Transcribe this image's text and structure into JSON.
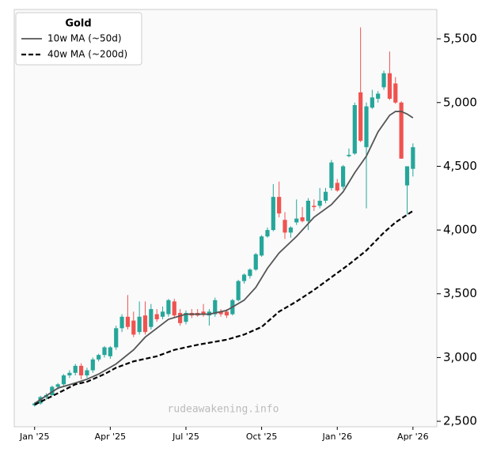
{
  "chart_data": {
    "type": "candlestick",
    "legend_title": "Gold",
    "legend_position": "upper left",
    "watermark": "rudeawakening.info",
    "up_color": "#26a69a",
    "down_color": "#ef5350",
    "x": [
      0,
      1,
      2,
      3,
      4,
      5,
      6,
      7,
      8,
      9,
      10,
      11,
      12,
      13,
      14,
      15,
      16,
      17,
      18,
      19,
      20,
      21,
      22,
      23,
      24,
      25,
      26,
      27,
      28,
      29,
      30,
      31,
      32,
      33,
      34,
      35,
      36,
      37,
      38,
      39,
      40,
      41,
      42,
      43,
      44,
      45,
      46,
      47,
      48,
      49,
      50,
      51,
      52,
      53,
      54,
      55,
      56,
      57,
      58,
      59,
      60,
      61,
      62,
      63,
      64,
      65
    ],
    "ohlc": [
      [
        2625,
        2650,
        2615,
        2640
      ],
      [
        2640,
        2700,
        2630,
        2690
      ],
      [
        2690,
        2720,
        2670,
        2705
      ],
      [
        2705,
        2780,
        2700,
        2770
      ],
      [
        2770,
        2800,
        2750,
        2790
      ],
      [
        2790,
        2870,
        2780,
        2860
      ],
      [
        2860,
        2900,
        2840,
        2880
      ],
      [
        2880,
        2950,
        2860,
        2935
      ],
      [
        2935,
        2955,
        2830,
        2860
      ],
      [
        2860,
        2920,
        2840,
        2900
      ],
      [
        2900,
        3000,
        2880,
        2985
      ],
      [
        2985,
        3030,
        2970,
        3020
      ],
      [
        3020,
        3090,
        3000,
        3080
      ],
      [
        3010,
        3090,
        2990,
        3080
      ],
      [
        3080,
        3250,
        3060,
        3230
      ],
      [
        3230,
        3340,
        3200,
        3320
      ],
      [
        3320,
        3490,
        3220,
        3240
      ],
      [
        3290,
        3360,
        3160,
        3180
      ],
      [
        3200,
        3440,
        3180,
        3320
      ],
      [
        3330,
        3440,
        3180,
        3200
      ],
      [
        3240,
        3420,
        3220,
        3380
      ],
      [
        3340,
        3380,
        3280,
        3300
      ],
      [
        3320,
        3400,
        3300,
        3360
      ],
      [
        3340,
        3460,
        3320,
        3450
      ],
      [
        3440,
        3460,
        3310,
        3330
      ],
      [
        3350,
        3380,
        3250,
        3270
      ],
      [
        3280,
        3370,
        3260,
        3350
      ],
      [
        3350,
        3380,
        3310,
        3330
      ],
      [
        3350,
        3380,
        3320,
        3330
      ],
      [
        3360,
        3420,
        3320,
        3340
      ],
      [
        3330,
        3380,
        3250,
        3360
      ],
      [
        3340,
        3470,
        3320,
        3450
      ],
      [
        3360,
        3380,
        3320,
        3340
      ],
      [
        3360,
        3380,
        3310,
        3330
      ],
      [
        3340,
        3460,
        3330,
        3450
      ],
      [
        3450,
        3610,
        3440,
        3600
      ],
      [
        3600,
        3660,
        3580,
        3650
      ],
      [
        3640,
        3700,
        3620,
        3690
      ],
      [
        3690,
        3820,
        3680,
        3810
      ],
      [
        3800,
        3960,
        3790,
        3950
      ],
      [
        3950,
        4020,
        3940,
        4000
      ],
      [
        4000,
        4360,
        3990,
        4260
      ],
      [
        4260,
        4380,
        4100,
        4130
      ],
      [
        4080,
        4140,
        3930,
        3980
      ],
      [
        3980,
        4030,
        3940,
        4020
      ],
      [
        4060,
        4240,
        4040,
        4090
      ],
      [
        4100,
        4180,
        4060,
        4070
      ],
      [
        4070,
        4250,
        4000,
        4230
      ],
      [
        4190,
        4240,
        4150,
        4180
      ],
      [
        4190,
        4330,
        4170,
        4230
      ],
      [
        4230,
        4330,
        4210,
        4300
      ],
      [
        4330,
        4550,
        4310,
        4530
      ],
      [
        4370,
        4400,
        4300,
        4310
      ],
      [
        4340,
        4510,
        4320,
        4500
      ],
      [
        4580,
        4640,
        4570,
        4590
      ],
      [
        4600,
        5000,
        4590,
        4980
      ],
      [
        5080,
        5590,
        4690,
        4700
      ],
      [
        4650,
        5000,
        4170,
        4970
      ],
      [
        4960,
        5100,
        4950,
        5040
      ],
      [
        5030,
        5090,
        5000,
        5070
      ],
      [
        5120,
        5250,
        5100,
        5230
      ],
      [
        5230,
        5400,
        5020,
        5030
      ],
      [
        5150,
        5200,
        4990,
        5000
      ],
      [
        5000,
        5010,
        4560,
        4560
      ],
      [
        4350,
        4500,
        4120,
        4500
      ],
      [
        4480,
        4680,
        4420,
        4650
      ]
    ],
    "series": [
      {
        "name": "10w MA (~50d)",
        "color": "#555555",
        "dash": false,
        "x": [
          0,
          4,
          7,
          9,
          11,
          14,
          17,
          19,
          21,
          23,
          26,
          30,
          33,
          36,
          38,
          40,
          42,
          45,
          48,
          51,
          53,
          55,
          57,
          59,
          61,
          62,
          63,
          64,
          65
        ],
        "values": [
          2640,
          2760,
          2800,
          2830,
          2870,
          2950,
          3060,
          3160,
          3230,
          3300,
          3340,
          3340,
          3370,
          3450,
          3550,
          3700,
          3820,
          3950,
          4100,
          4200,
          4300,
          4450,
          4580,
          4770,
          4900,
          4930,
          4930,
          4910,
          4880
        ]
      },
      {
        "name": "40w MA (~200d)",
        "color": "#000000",
        "dash": true,
        "x": [
          0,
          4,
          7,
          9,
          12,
          14,
          17,
          21,
          24,
          28,
          33,
          36,
          39,
          42,
          45,
          48,
          51,
          54,
          57,
          60,
          62,
          65
        ],
        "values": [
          2630,
          2720,
          2790,
          2810,
          2870,
          2920,
          2970,
          3010,
          3060,
          3100,
          3140,
          3180,
          3240,
          3360,
          3440,
          3530,
          3630,
          3730,
          3840,
          3980,
          4060,
          4150
        ]
      }
    ],
    "xlim": [
      -3.5,
      69.1
    ],
    "ylim": [
      2457,
      5730
    ],
    "xticks": [
      {
        "value": 0,
        "label": "Jan '25"
      },
      {
        "value": 13,
        "label": "Apr '25"
      },
      {
        "value": 26,
        "label": "Jul '25"
      },
      {
        "value": 39,
        "label": "Oct '25"
      },
      {
        "value": 52,
        "label": "Jan '26"
      },
      {
        "value": 65,
        "label": "Apr '26"
      }
    ],
    "yticks": [
      {
        "value": 2500,
        "label": "2,500"
      },
      {
        "value": 3000,
        "label": "3,000"
      },
      {
        "value": 3500,
        "label": "3,500"
      },
      {
        "value": 4000,
        "label": "4,000"
      },
      {
        "value": 4500,
        "label": "4,500"
      },
      {
        "value": 5000,
        "label": "5,000"
      },
      {
        "value": 5500,
        "label": "5,500"
      }
    ]
  }
}
